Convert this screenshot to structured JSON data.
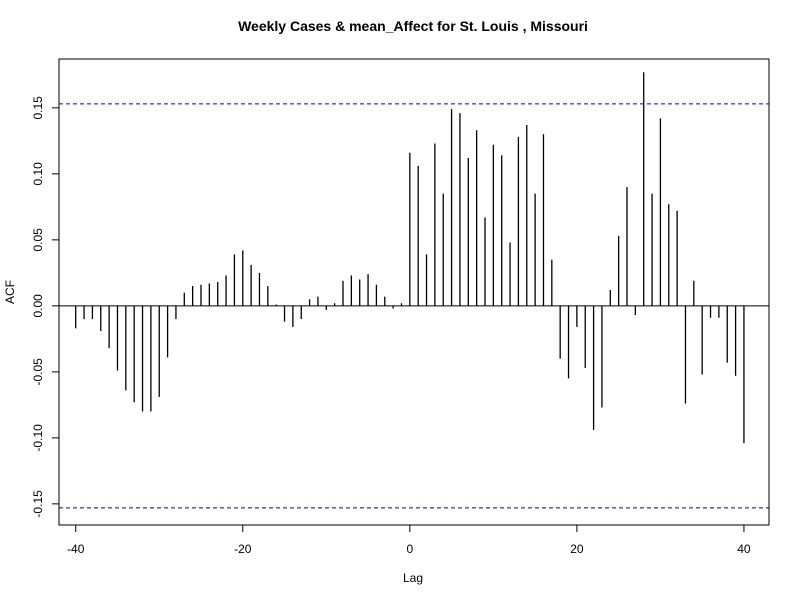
{
  "chart_data": {
    "type": "bar",
    "title": "Weekly Cases & mean_Affect for St. Louis , Missouri",
    "xlabel": "Lag",
    "ylabel": "ACF",
    "xlim": [
      -42,
      43
    ],
    "ylim": [
      -0.166,
      0.187
    ],
    "xticks": [
      -40,
      -20,
      0,
      20,
      40
    ],
    "xtick_labels": [
      "-40",
      "-20",
      "0",
      "20",
      "40"
    ],
    "yticks": [
      -0.15,
      -0.1,
      -0.05,
      0.0,
      0.05,
      0.1,
      0.15
    ],
    "ytick_labels": [
      "-0.15",
      "-0.10",
      "-0.05",
      "0.00",
      "0.05",
      "0.10",
      "0.15"
    ],
    "confidence_limit": 0.153,
    "confidence_color": "#0000cc",
    "bar_color": "#000000",
    "grid": false,
    "x": [
      -40,
      -39,
      -38,
      -37,
      -36,
      -35,
      -34,
      -33,
      -32,
      -31,
      -30,
      -29,
      -28,
      -27,
      -26,
      -25,
      -24,
      -23,
      -22,
      -21,
      -20,
      -19,
      -18,
      -17,
      -16,
      -15,
      -14,
      -13,
      -12,
      -11,
      -10,
      -9,
      -8,
      -7,
      -6,
      -5,
      -4,
      -3,
      -2,
      -1,
      0,
      1,
      2,
      3,
      4,
      5,
      6,
      7,
      8,
      9,
      10,
      11,
      12,
      13,
      14,
      15,
      16,
      17,
      18,
      19,
      20,
      21,
      22,
      23,
      24,
      25,
      26,
      27,
      28,
      29,
      30,
      31,
      32,
      33,
      34,
      35,
      36,
      37,
      38,
      39,
      40
    ],
    "values": [
      -0.017,
      -0.01,
      -0.01,
      -0.019,
      -0.032,
      -0.049,
      -0.064,
      -0.073,
      -0.08,
      -0.08,
      -0.069,
      -0.039,
      -0.01,
      0.01,
      0.015,
      0.016,
      0.017,
      0.018,
      0.023,
      0.039,
      0.042,
      0.031,
      0.025,
      0.015,
      0.001,
      -0.012,
      -0.016,
      -0.01,
      0.005,
      0.007,
      -0.003,
      0.002,
      0.019,
      0.023,
      0.02,
      0.024,
      0.016,
      0.007,
      -0.002,
      0.002,
      0.116,
      0.106,
      0.039,
      0.123,
      0.085,
      0.149,
      0.146,
      0.112,
      0.133,
      0.067,
      0.122,
      0.114,
      0.048,
      0.128,
      0.137,
      0.085,
      0.13,
      0.035,
      -0.04,
      -0.055,
      -0.016,
      -0.047,
      -0.094,
      -0.077,
      0.012,
      0.053,
      0.09,
      -0.007,
      0.177,
      0.085,
      0.142,
      0.077,
      0.072,
      -0.074,
      0.019,
      -0.052,
      -0.009,
      -0.009,
      -0.043,
      -0.053,
      -0.104
    ]
  }
}
